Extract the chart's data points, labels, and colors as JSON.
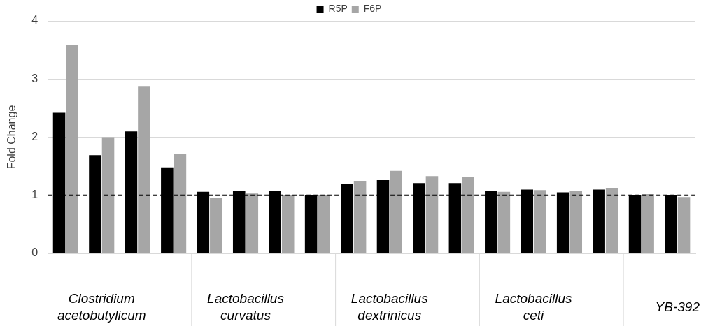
{
  "chart_data": {
    "type": "bar",
    "ylabel": "Fold Change",
    "categories": [
      null,
      "Clostridium acetobutylicum",
      null,
      null,
      null,
      "Lactobacillus curvatus",
      null,
      null,
      null,
      "Lactobacillus dextrinicus",
      null,
      null,
      null,
      "Lactobacillus ceti",
      null,
      null,
      null,
      "YB-392"
    ],
    "series": [
      {
        "name": "R5P",
        "color": "#000000",
        "values": [
          2.42,
          1.69,
          2.1,
          1.48,
          1.06,
          1.07,
          1.08,
          1.0,
          1.2,
          1.26,
          1.21,
          1.21,
          1.07,
          1.1,
          1.05,
          1.1,
          1.0,
          1.0
        ]
      },
      {
        "name": "F6P",
        "color": "#a6a6a6",
        "values": [
          3.58,
          2.0,
          2.88,
          1.71,
          0.96,
          1.03,
          1.0,
          1.0,
          1.25,
          1.42,
          1.33,
          1.32,
          1.06,
          1.09,
          1.07,
          1.13,
          1.02,
          0.97
        ]
      }
    ],
    "ylim": [
      0,
      4
    ],
    "yticks": [
      0,
      1,
      2,
      3,
      4
    ],
    "grid": "y",
    "legend": "top",
    "ref_lines": [
      {
        "axis": "y",
        "value": 1,
        "color": "#000000",
        "line_style": "dashed"
      }
    ]
  }
}
